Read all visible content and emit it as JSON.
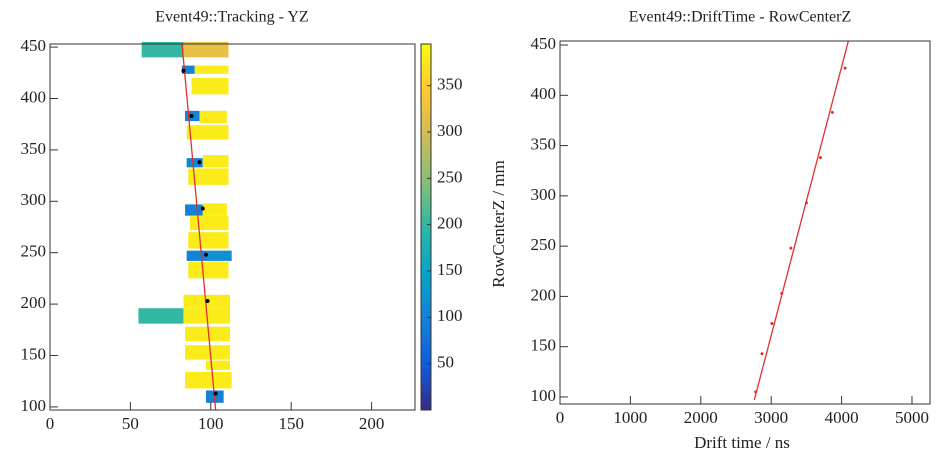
{
  "chart_data": [
    {
      "type": "heatmap",
      "title": "Event49::Tracking - YZ",
      "xlim": [
        0,
        227
      ],
      "ylim": [
        97,
        453
      ],
      "xticks": [
        0,
        50,
        100,
        150,
        200
      ],
      "yticks": [
        100,
        150,
        200,
        250,
        300,
        350,
        400,
        450
      ],
      "zlim": [
        0,
        395
      ],
      "zticks": [
        50,
        100,
        150,
        200,
        250,
        300,
        350
      ],
      "colormap": [
        "#352a87",
        "#0f5cdd",
        "#1481d6",
        "#06a4ca",
        "#2eb7a4",
        "#87bf77",
        "#d1bb59",
        "#fec832",
        "#f9fb0e"
      ],
      "cells": [
        {
          "x": [
            57,
            83
          ],
          "y": [
            440,
            455
          ],
          "value": 200
        },
        {
          "x": [
            83,
            111
          ],
          "y": [
            440,
            455
          ],
          "value": 320
        },
        {
          "x": [
            82,
            90
          ],
          "y": [
            424,
            432
          ],
          "value": 100
        },
        {
          "x": [
            90,
            111
          ],
          "y": [
            424,
            432
          ],
          "value": 380
        },
        {
          "x": [
            88,
            111
          ],
          "y": [
            404,
            420
          ],
          "value": 380
        },
        {
          "x": [
            84,
            93
          ],
          "y": [
            378,
            388
          ],
          "value": 100
        },
        {
          "x": [
            93,
            110
          ],
          "y": [
            376,
            388
          ],
          "value": 380
        },
        {
          "x": [
            85,
            111
          ],
          "y": [
            360,
            374
          ],
          "value": 380
        },
        {
          "x": [
            85,
            95
          ],
          "y": [
            333,
            342
          ],
          "value": 100
        },
        {
          "x": [
            95,
            111
          ],
          "y": [
            333,
            345
          ],
          "value": 380
        },
        {
          "x": [
            86,
            111
          ],
          "y": [
            316,
            332
          ],
          "value": 380
        },
        {
          "x": [
            84,
            95
          ],
          "y": [
            286,
            297
          ],
          "value": 100
        },
        {
          "x": [
            95,
            110
          ],
          "y": [
            286,
            298
          ],
          "value": 380
        },
        {
          "x": [
            87,
            111
          ],
          "y": [
            272,
            286
          ],
          "value": 380
        },
        {
          "x": [
            86,
            111
          ],
          "y": [
            254,
            270
          ],
          "value": 380
        },
        {
          "x": [
            85,
            98
          ],
          "y": [
            242,
            252
          ],
          "value": 100
        },
        {
          "x": [
            98,
            113
          ],
          "y": [
            242,
            252
          ],
          "value": 120
        },
        {
          "x": [
            86,
            111
          ],
          "y": [
            225,
            241
          ],
          "value": 380
        },
        {
          "x": [
            83,
            112
          ],
          "y": [
            196,
            209
          ],
          "value": 380
        },
        {
          "x": [
            55,
            83
          ],
          "y": [
            181,
            196
          ],
          "value": 200
        },
        {
          "x": [
            83,
            112
          ],
          "y": [
            181,
            196
          ],
          "value": 380
        },
        {
          "x": [
            84,
            112
          ],
          "y": [
            164,
            178
          ],
          "value": 380
        },
        {
          "x": [
            84,
            112
          ],
          "y": [
            146,
            160
          ],
          "value": 380
        },
        {
          "x": [
            97,
            112
          ],
          "y": [
            136,
            145
          ],
          "value": 380
        },
        {
          "x": [
            84,
            113
          ],
          "y": [
            118,
            134
          ],
          "value": 380
        },
        {
          "x": [
            97,
            108
          ],
          "y": [
            104,
            116
          ],
          "value": 100
        }
      ],
      "points": {
        "x": [
          83,
          88,
          93,
          95,
          97,
          98,
          103
        ],
        "y": [
          427,
          383,
          338,
          293,
          248,
          203,
          113
        ]
      },
      "fit_line": {
        "x": [
          82,
          103
        ],
        "y": [
          455,
          97
        ]
      },
      "line_color": "#e03030"
    },
    {
      "type": "scatter",
      "title": "Event49::DriftTime - RowCenterZ",
      "x_label": "Drift time / ns",
      "y_label": "RowCenterZ / mm",
      "xlim": [
        0,
        5256
      ],
      "ylim": [
        93,
        454
      ],
      "xticks": [
        0,
        1000,
        2000,
        3000,
        4000,
        5000
      ],
      "yticks": [
        100,
        150,
        200,
        250,
        300,
        350,
        400,
        450
      ],
      "points": {
        "x": [
          2780,
          2870,
          3010,
          3150,
          3280,
          3500,
          3700,
          3870,
          4050
        ],
        "y": [
          105,
          143,
          173,
          203,
          248,
          293,
          338,
          383,
          427
        ]
      },
      "fit_line": {
        "x": [
          2760,
          4100
        ],
        "y": [
          97,
          455
        ]
      },
      "line_color": "#e03030"
    }
  ]
}
